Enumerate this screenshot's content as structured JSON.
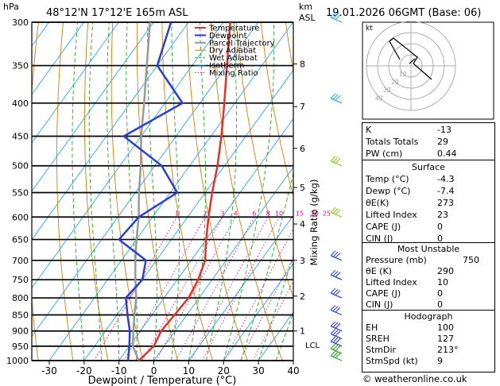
{
  "header": {
    "location": "48°12'N  17°12'E  165m  ASL",
    "date": "19.01.2026  06GMT  (Base: 06)"
  },
  "chart_data": {
    "type": "skew-t",
    "title": "48°12'N  17°12'E  165m  ASL",
    "xlabel": "Dewpoint / Temperature (°C)",
    "ylabel_left": "hPa",
    "ylabel_right_top": "km",
    "ylabel_right_top2": "ASL",
    "mixing_ratio_label": "Mixing Ratio (g/kg)",
    "xlim": [
      -35,
      40
    ],
    "ylim": [
      1000,
      300
    ],
    "x_ticks": [
      "-30",
      "-20",
      "-10",
      "0",
      "10",
      "20",
      "30",
      "40"
    ],
    "x_tick_values": [
      -30,
      -20,
      -10,
      0,
      10,
      20,
      30,
      40
    ],
    "pressure_levels": [
      300,
      350,
      400,
      450,
      500,
      550,
      600,
      650,
      700,
      750,
      800,
      850,
      900,
      950,
      1000
    ],
    "pressure_labels": [
      "300",
      "350",
      "400",
      "450",
      "500",
      "550",
      "600",
      "650",
      "700",
      "750",
      "800",
      "850",
      "900",
      "950",
      "1000"
    ],
    "km_labels": [
      "1",
      "2",
      "3",
      "4",
      "5",
      "6",
      "7",
      "8"
    ],
    "km_pressures": [
      900,
      795,
      700,
      615,
      540,
      470,
      405,
      348
    ],
    "lcl_label": "LCL",
    "lcl_pressure": 945,
    "mixing_ratio_values": [
      "1",
      "2",
      "3",
      "4",
      "6",
      "8",
      "10",
      "15",
      "20",
      "25"
    ],
    "legend": [
      {
        "name": "Temperature",
        "color": "#e8302a"
      },
      {
        "name": "Dewpoint",
        "color": "#2a3fd8"
      },
      {
        "name": "Parcel Trajectory",
        "color": "#999999"
      },
      {
        "name": "Dry Adiabat",
        "color": "#e07b00"
      },
      {
        "name": "Wet Adiabat",
        "color": "#22aa22"
      },
      {
        "name": "Isotherm",
        "color": "#22aaee"
      },
      {
        "name": "Mixing Ratio",
        "color": "#e01090"
      }
    ],
    "temperature_profile": {
      "pressure": [
        1000,
        950,
        900,
        850,
        800,
        750,
        700,
        650,
        600,
        550,
        500,
        450,
        400,
        350,
        300
      ],
      "temp": [
        -4.3,
        -3,
        -4,
        -3.5,
        -3,
        -4,
        -6,
        -10,
        -14,
        -18,
        -22,
        -27,
        -33,
        -40,
        -48
      ]
    },
    "dewpoint_profile": {
      "pressure": [
        1000,
        950,
        900,
        850,
        800,
        750,
        700,
        650,
        600,
        550,
        500,
        450,
        400,
        350,
        300
      ],
      "dewp": [
        -7.4,
        -10,
        -13,
        -17,
        -21,
        -20,
        -23,
        -35,
        -34,
        -28,
        -38,
        -55,
        -45,
        -60,
        -65
      ]
    },
    "parcel_profile": {
      "pressure": [
        1000,
        950,
        900,
        850,
        800,
        750,
        700,
        650,
        600,
        550,
        500,
        450,
        400,
        350,
        300
      ],
      "temp": [
        -4.3,
        -9,
        -12,
        -15,
        -18,
        -22,
        -26,
        -30,
        -34,
        -39,
        -44,
        -50,
        -56,
        -63,
        -71
      ]
    }
  },
  "hodograph": {
    "label": "kt",
    "rings": [
      "10",
      "20",
      "30",
      "40"
    ]
  },
  "indices": {
    "k_label": "K",
    "k_value": "-13",
    "tt_label": "Totals Totals",
    "tt_value": "29",
    "pw_label": "PW (cm)",
    "pw_value": "0.44"
  },
  "surface": {
    "title": "Surface",
    "temp_label": "Temp (°C)",
    "temp_value": "-4.3",
    "dewp_label": "Dewp (°C)",
    "dewp_value": "-7.4",
    "theta_label": "θE(K)",
    "theta_value": "273",
    "li_label": "Lifted Index",
    "li_value": "23",
    "cape_label": "CAPE (J)",
    "cape_value": "0",
    "cin_label": "CIN (J)",
    "cin_value": "0"
  },
  "most_unstable": {
    "title": "Most Unstable",
    "pressure_label": "Pressure (mb)",
    "pressure_value": "750",
    "theta_label": "θE (K)",
    "theta_value": "290",
    "li_label": "Lifted Index",
    "li_value": "10",
    "cape_label": "CAPE (J)",
    "cape_value": "0",
    "cin_label": "CIN (J)",
    "cin_value": "0"
  },
  "hodo_indices": {
    "title": "Hodograph",
    "eh_label": "EH",
    "eh_value": "100",
    "sreh_label": "SREH",
    "sreh_value": "127",
    "stmdir_label": "StmDir",
    "stmdir_value": "213°",
    "stmspd_label": "StmSpd (kt)",
    "stmspd_value": "9"
  },
  "footer": {
    "credit": "© weatheronline.co.uk"
  }
}
